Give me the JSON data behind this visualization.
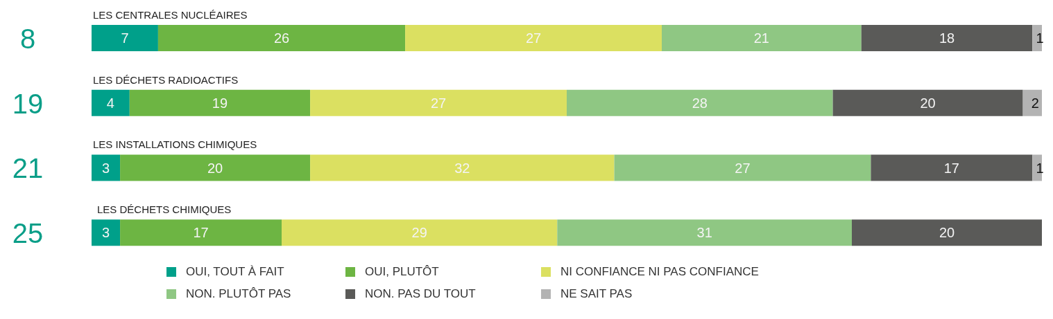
{
  "chart_data": {
    "type": "bar",
    "orientation": "horizontal",
    "stacked": true,
    "categories": [
      "LES CENTRALES NUCLÉAIRES",
      "LES DÉCHETS RADIOACTIFS",
      "LES INSTALLATIONS CHIMIQUES",
      "LES DÉCHETS CHIMIQUES"
    ],
    "series": [
      {
        "name": "OUI, TOUT À FAIT",
        "color": "#00a08a",
        "values": [
          7,
          4,
          3,
          3
        ]
      },
      {
        "name": "OUI, PLUTÔT",
        "color": "#6db543",
        "values": [
          26,
          19,
          20,
          17
        ]
      },
      {
        "name": "NI CONFIANCE NI PAS CONFIANCE",
        "color": "#dbe061",
        "values": [
          27,
          27,
          32,
          29
        ]
      },
      {
        "name": "NON. PLUTÔT PAS",
        "color": "#8fc783",
        "values": [
          21,
          28,
          27,
          31
        ]
      },
      {
        "name": "NON. PAS DU TOUT",
        "color": "#5a5a58",
        "values": [
          18,
          20,
          17,
          20
        ]
      },
      {
        "name": "NE SAIT PAS",
        "color": "#b3b3b3",
        "values": [
          1,
          2,
          1,
          null
        ]
      }
    ],
    "xlim": [
      0,
      100
    ],
    "tick_labels": "y",
    "data_labels": true,
    "legend": "bottom",
    "grid": false,
    "annotations": [
      "8",
      "19",
      "21",
      "25"
    ]
  }
}
